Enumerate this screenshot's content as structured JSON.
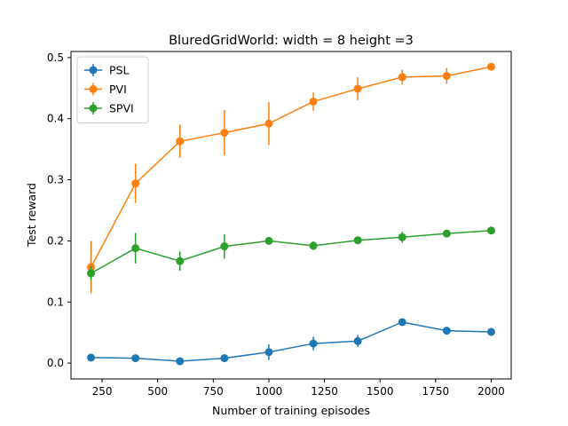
{
  "chart_data": {
    "type": "line",
    "title": "BluredGridWorld: width = 8 height =3",
    "xlabel": "Number of training episodes",
    "ylabel": "Test reward",
    "xlim": [
      110,
      2090
    ],
    "ylim": [
      -0.026,
      0.51
    ],
    "xticks": [
      250,
      500,
      750,
      1000,
      1250,
      1500,
      1750,
      2000
    ],
    "yticks": [
      0.0,
      0.1,
      0.2,
      0.3,
      0.4,
      0.5
    ],
    "legend_position": "upper left",
    "grid": false,
    "error_bars": true,
    "x": [
      200,
      400,
      600,
      800,
      1000,
      1200,
      1400,
      1600,
      1800,
      2000
    ],
    "series": [
      {
        "name": "PSL",
        "color": "#1f77b4",
        "values": [
          0.009,
          0.008,
          0.003,
          0.008,
          0.018,
          0.032,
          0.036,
          0.067,
          0.053,
          0.051
        ],
        "errors": [
          0.002,
          0.002,
          0.002,
          0.002,
          0.013,
          0.011,
          0.01,
          0.003,
          0.003,
          0.003
        ]
      },
      {
        "name": "PVI",
        "color": "#ff7f0e",
        "values": [
          0.157,
          0.294,
          0.363,
          0.377,
          0.392,
          0.428,
          0.449,
          0.468,
          0.47,
          0.485
        ],
        "errors": [
          0.043,
          0.032,
          0.027,
          0.037,
          0.035,
          0.015,
          0.019,
          0.012,
          0.013,
          0.005
        ]
      },
      {
        "name": "SPVI",
        "color": "#2ca02c",
        "values": [
          0.147,
          0.188,
          0.167,
          0.191,
          0.2,
          0.192,
          0.201,
          0.206,
          0.212,
          0.217
        ],
        "errors": [
          0.012,
          0.025,
          0.016,
          0.02,
          0.006,
          0.007,
          0.006,
          0.009,
          0.005,
          0.004
        ]
      }
    ]
  }
}
